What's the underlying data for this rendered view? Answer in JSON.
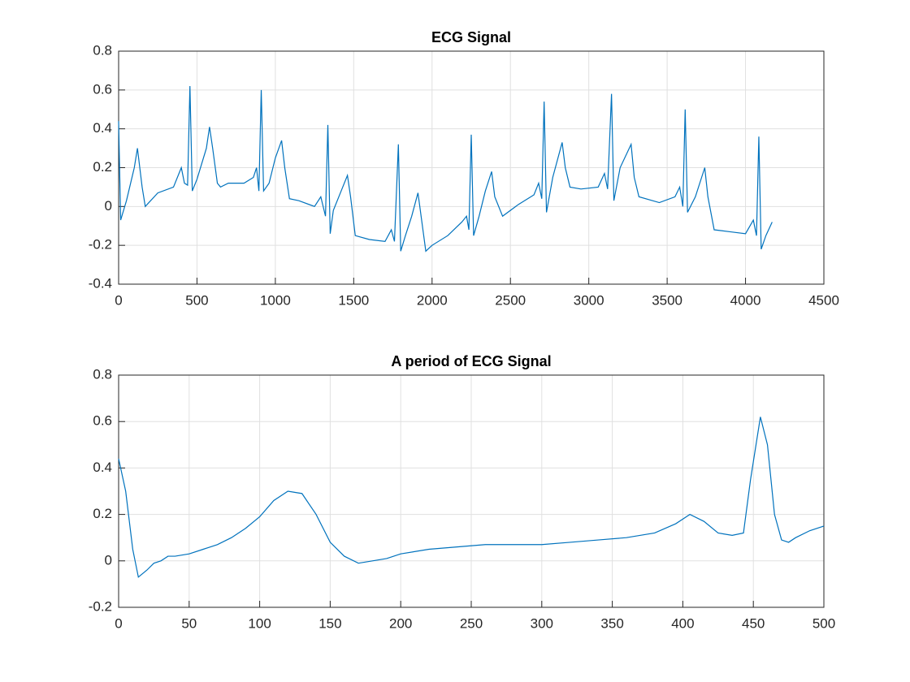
{
  "chart_data": [
    {
      "type": "line",
      "title": "ECG Signal",
      "color": "#0072bd",
      "x": [
        0,
        13,
        50,
        100,
        120,
        150,
        170,
        250,
        350,
        400,
        420,
        440,
        455,
        470,
        500,
        560,
        580,
        600,
        630,
        650,
        700,
        800,
        860,
        880,
        895,
        910,
        925,
        960,
        1000,
        1040,
        1060,
        1090,
        1150,
        1250,
        1290,
        1320,
        1335,
        1350,
        1370,
        1420,
        1460,
        1480,
        1510,
        1600,
        1700,
        1740,
        1760,
        1785,
        1800,
        1830,
        1870,
        1910,
        1930,
        1960,
        2000,
        2100,
        2190,
        2220,
        2235,
        2250,
        2265,
        2300,
        2340,
        2380,
        2400,
        2450,
        2550,
        2650,
        2680,
        2700,
        2715,
        2730,
        2770,
        2830,
        2850,
        2880,
        2950,
        3060,
        3100,
        3120,
        3145,
        3160,
        3200,
        3270,
        3290,
        3320,
        3450,
        3550,
        3580,
        3600,
        3615,
        3630,
        3680,
        3740,
        3760,
        3800,
        3900,
        4000,
        4050,
        4070,
        4085,
        4100,
        4130,
        4170
      ],
      "values": [
        0.44,
        -0.07,
        0.03,
        0.2,
        0.3,
        0.1,
        0.0,
        0.07,
        0.1,
        0.2,
        0.12,
        0.11,
        0.62,
        0.08,
        0.14,
        0.3,
        0.41,
        0.3,
        0.12,
        0.1,
        0.12,
        0.12,
        0.15,
        0.2,
        0.08,
        0.6,
        0.08,
        0.12,
        0.25,
        0.34,
        0.2,
        0.04,
        0.03,
        0.0,
        0.05,
        -0.05,
        0.42,
        -0.14,
        -0.02,
        0.08,
        0.16,
        0.05,
        -0.15,
        -0.17,
        -0.18,
        -0.12,
        -0.18,
        0.32,
        -0.23,
        -0.15,
        -0.05,
        0.07,
        -0.05,
        -0.23,
        -0.2,
        -0.15,
        -0.08,
        -0.05,
        -0.12,
        0.37,
        -0.15,
        -0.05,
        0.08,
        0.18,
        0.05,
        -0.05,
        0.01,
        0.06,
        0.12,
        0.04,
        0.54,
        -0.03,
        0.15,
        0.33,
        0.2,
        0.1,
        0.09,
        0.1,
        0.17,
        0.09,
        0.58,
        0.03,
        0.2,
        0.32,
        0.15,
        0.05,
        0.02,
        0.05,
        0.1,
        0.0,
        0.5,
        -0.03,
        0.05,
        0.2,
        0.05,
        -0.12,
        -0.13,
        -0.14,
        -0.07,
        -0.15,
        0.36,
        -0.22,
        -0.15,
        -0.08
      ],
      "xlim": [
        0,
        4500
      ],
      "xticks": [
        0,
        500,
        1000,
        1500,
        2000,
        2500,
        3000,
        3500,
        4000,
        4500
      ],
      "ylim": [
        -0.4,
        0.8
      ],
      "yticks": [
        -0.4,
        -0.2,
        0,
        0.2,
        0.4,
        0.6,
        0.8
      ],
      "grid": true
    },
    {
      "type": "line",
      "title": "A period of ECG Signal",
      "color": "#0072bd",
      "x": [
        0,
        5,
        10,
        14,
        20,
        25,
        30,
        35,
        40,
        50,
        60,
        70,
        80,
        90,
        100,
        110,
        120,
        130,
        140,
        150,
        160,
        170,
        180,
        190,
        200,
        220,
        240,
        260,
        280,
        300,
        320,
        340,
        360,
        380,
        395,
        405,
        415,
        425,
        435,
        443,
        448,
        455,
        460,
        465,
        470,
        475,
        480,
        490,
        500
      ],
      "values": [
        0.44,
        0.3,
        0.05,
        -0.07,
        -0.04,
        -0.01,
        0.0,
        0.02,
        0.02,
        0.03,
        0.05,
        0.07,
        0.1,
        0.14,
        0.19,
        0.26,
        0.3,
        0.29,
        0.2,
        0.08,
        0.02,
        -0.01,
        0.0,
        0.01,
        0.03,
        0.05,
        0.06,
        0.07,
        0.07,
        0.07,
        0.08,
        0.09,
        0.1,
        0.12,
        0.16,
        0.2,
        0.17,
        0.12,
        0.11,
        0.12,
        0.35,
        0.62,
        0.5,
        0.2,
        0.09,
        0.08,
        0.1,
        0.13,
        0.15
      ],
      "xlim": [
        0,
        500
      ],
      "xticks": [
        0,
        50,
        100,
        150,
        200,
        250,
        300,
        350,
        400,
        450,
        500
      ],
      "ylim": [
        -0.2,
        0.8
      ],
      "yticks": [
        -0.2,
        0,
        0.2,
        0.4,
        0.6,
        0.8
      ],
      "grid": true
    }
  ]
}
